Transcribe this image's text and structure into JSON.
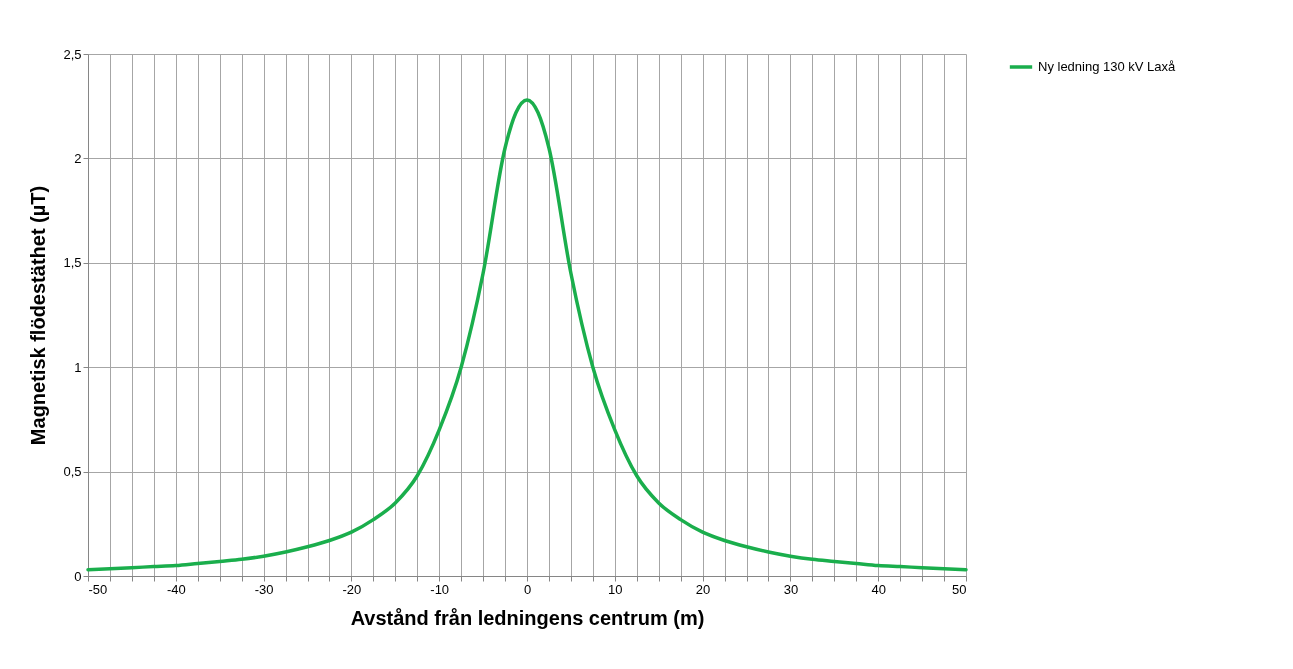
{
  "chart_data": {
    "type": "line",
    "xlabel": "Avstånd från ledningens centrum (m)",
    "ylabel": "Magnetisk flödestäthet (µT)",
    "x": [
      -50,
      -47.5,
      -45,
      -42.5,
      -40,
      -37.5,
      -35,
      -32.5,
      -30,
      -27.5,
      -25,
      -22.5,
      -20,
      -17.5,
      -15,
      -12.5,
      -10,
      -7.5,
      -5,
      -2.5,
      -1.25,
      0,
      1.25,
      2.5,
      5,
      7.5,
      10,
      12.5,
      15,
      17.5,
      20,
      22.5,
      25,
      27.5,
      30,
      32.5,
      35,
      37.5,
      40,
      42.5,
      45,
      47.5,
      50
    ],
    "series": [
      {
        "name": "Ny ledning 130 kV Laxå",
        "color": "#1aae4c",
        "values": [
          0.03,
          0.035,
          0.04,
          0.045,
          0.05,
          0.06,
          0.07,
          0.08,
          0.095,
          0.115,
          0.14,
          0.17,
          0.21,
          0.27,
          0.35,
          0.48,
          0.7,
          1.0,
          1.45,
          2.05,
          2.22,
          2.28,
          2.22,
          2.05,
          1.45,
          1.0,
          0.7,
          0.48,
          0.35,
          0.27,
          0.21,
          0.17,
          0.14,
          0.115,
          0.095,
          0.08,
          0.07,
          0.06,
          0.05,
          0.045,
          0.04,
          0.035,
          0.03
        ]
      }
    ],
    "xlim": [
      -50,
      50
    ],
    "xticks": [
      -50,
      {
        "value": -47.5,
        "label": null
      },
      {
        "value": -45,
        "label": null
      },
      {
        "value": -42.5,
        "label": null
      },
      -40,
      {
        "value": -37.5,
        "label": null
      },
      {
        "value": -35,
        "label": null
      },
      {
        "value": -32.5,
        "label": null
      },
      -30,
      {
        "value": -27.5,
        "label": null
      },
      {
        "value": -25,
        "label": null
      },
      {
        "value": -22.5,
        "label": null
      },
      -20,
      {
        "value": -17.5,
        "label": null
      },
      {
        "value": -15,
        "label": null
      },
      {
        "value": -12.5,
        "label": null
      },
      -10,
      {
        "value": -7.5,
        "label": null
      },
      {
        "value": -5,
        "label": null
      },
      {
        "value": -2.5,
        "label": null
      },
      0,
      {
        "value": 2.5,
        "label": null
      },
      {
        "value": 5,
        "label": null
      },
      {
        "value": 7.5,
        "label": null
      },
      10,
      {
        "value": 12.5,
        "label": null
      },
      {
        "value": 15,
        "label": null
      },
      {
        "value": 17.5,
        "label": null
      },
      20,
      {
        "value": 22.5,
        "label": null
      },
      {
        "value": 25,
        "label": null
      },
      {
        "value": 27.5,
        "label": null
      },
      30,
      {
        "value": 32.5,
        "label": null
      },
      {
        "value": 35,
        "label": null
      },
      {
        "value": 37.5,
        "label": null
      },
      40,
      {
        "value": 42.5,
        "label": null
      },
      {
        "value": 45,
        "label": null
      },
      {
        "value": 47.5,
        "label": null
      },
      50
    ],
    "ylim": [
      0,
      2.5
    ],
    "yticks": [
      0,
      {
        "value": 0.5,
        "label": "0,5"
      },
      1,
      {
        "value": 1.5,
        "label": "1,5"
      },
      2,
      {
        "value": 2.5,
        "label": "2,5"
      }
    ],
    "grid": true,
    "legend": "right",
    "marker": "none",
    "line_style": "solid"
  }
}
